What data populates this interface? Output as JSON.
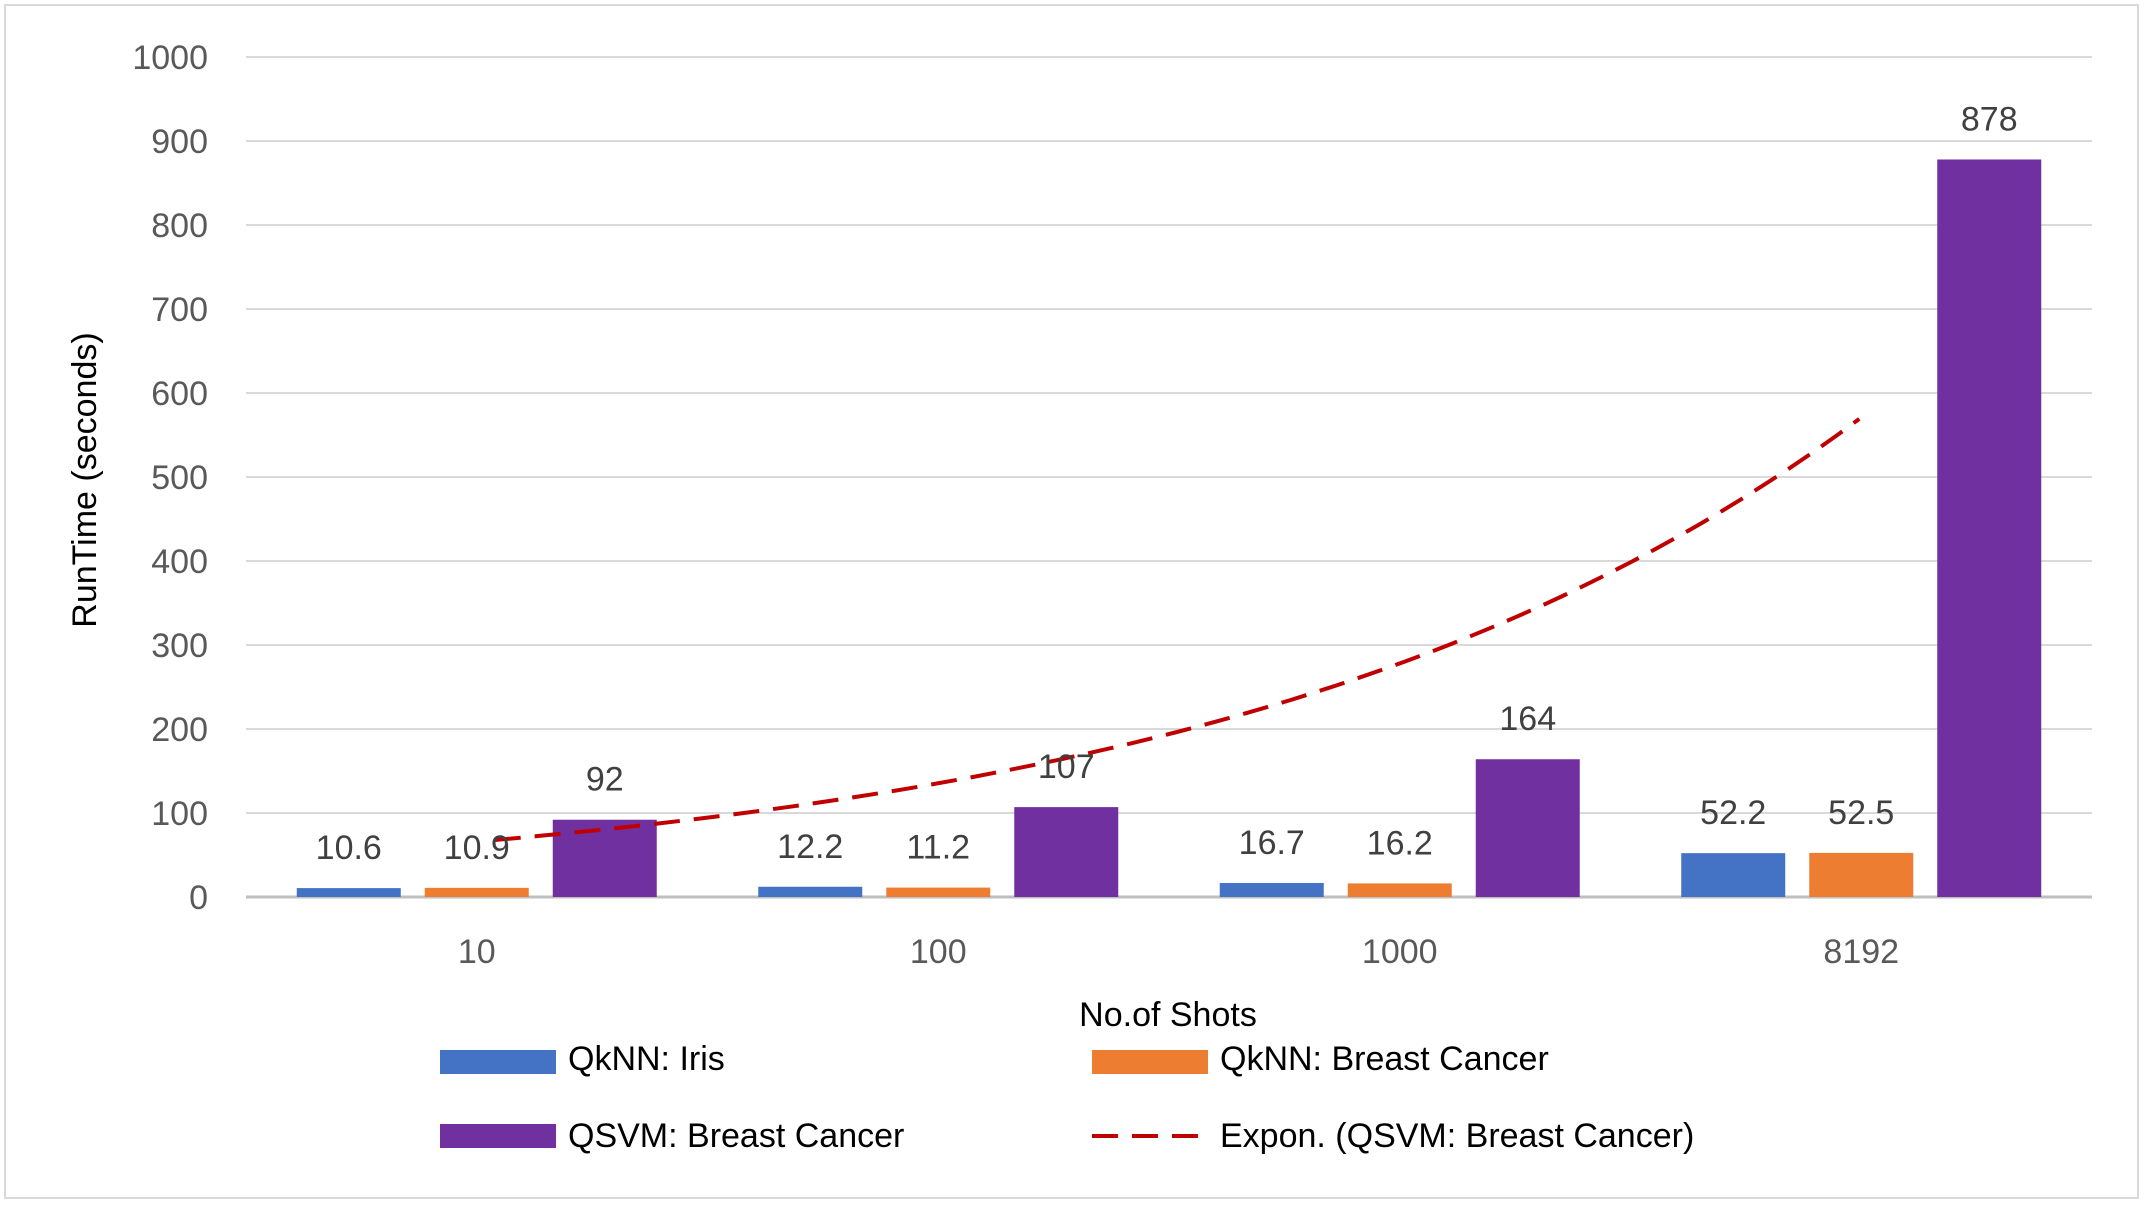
{
  "chart_data": {
    "type": "bar",
    "categories": [
      "10",
      "100",
      "1000",
      "8192"
    ],
    "series": [
      {
        "name": "QkNN: Iris",
        "values": [
          10.6,
          12.2,
          16.7,
          52.2
        ],
        "color": "#4472C4"
      },
      {
        "name": "QkNN: Breast Cancer",
        "values": [
          10.9,
          11.2,
          16.2,
          52.5
        ],
        "color": "#ED7D31"
      },
      {
        "name": "QSVM: Breast Cancer",
        "values": [
          92,
          107,
          164,
          878
        ],
        "color": "#7030A0"
      }
    ],
    "data_labels": [
      [
        "10.6",
        "12.2",
        "16.7",
        "52.2"
      ],
      [
        "10.9",
        "11.2",
        "16.2",
        "52.5"
      ],
      [
        "92",
        "107",
        "164",
        "878"
      ]
    ],
    "trendline": {
      "name": "Expon. (QSVM: Breast Cancer)",
      "kind": "exponential",
      "of_series": "QSVM: Breast Cancer",
      "color": "#C00000",
      "dashed": true
    },
    "title": "",
    "xlabel": "No.of Shots",
    "ylabel": "RunTime (seconds)",
    "ylim": [
      0,
      1000
    ],
    "yticks": [
      "0",
      "100",
      "200",
      "300",
      "400",
      "500",
      "600",
      "700",
      "800",
      "900",
      "1000"
    ],
    "grid": true,
    "legend_position": "bottom"
  }
}
